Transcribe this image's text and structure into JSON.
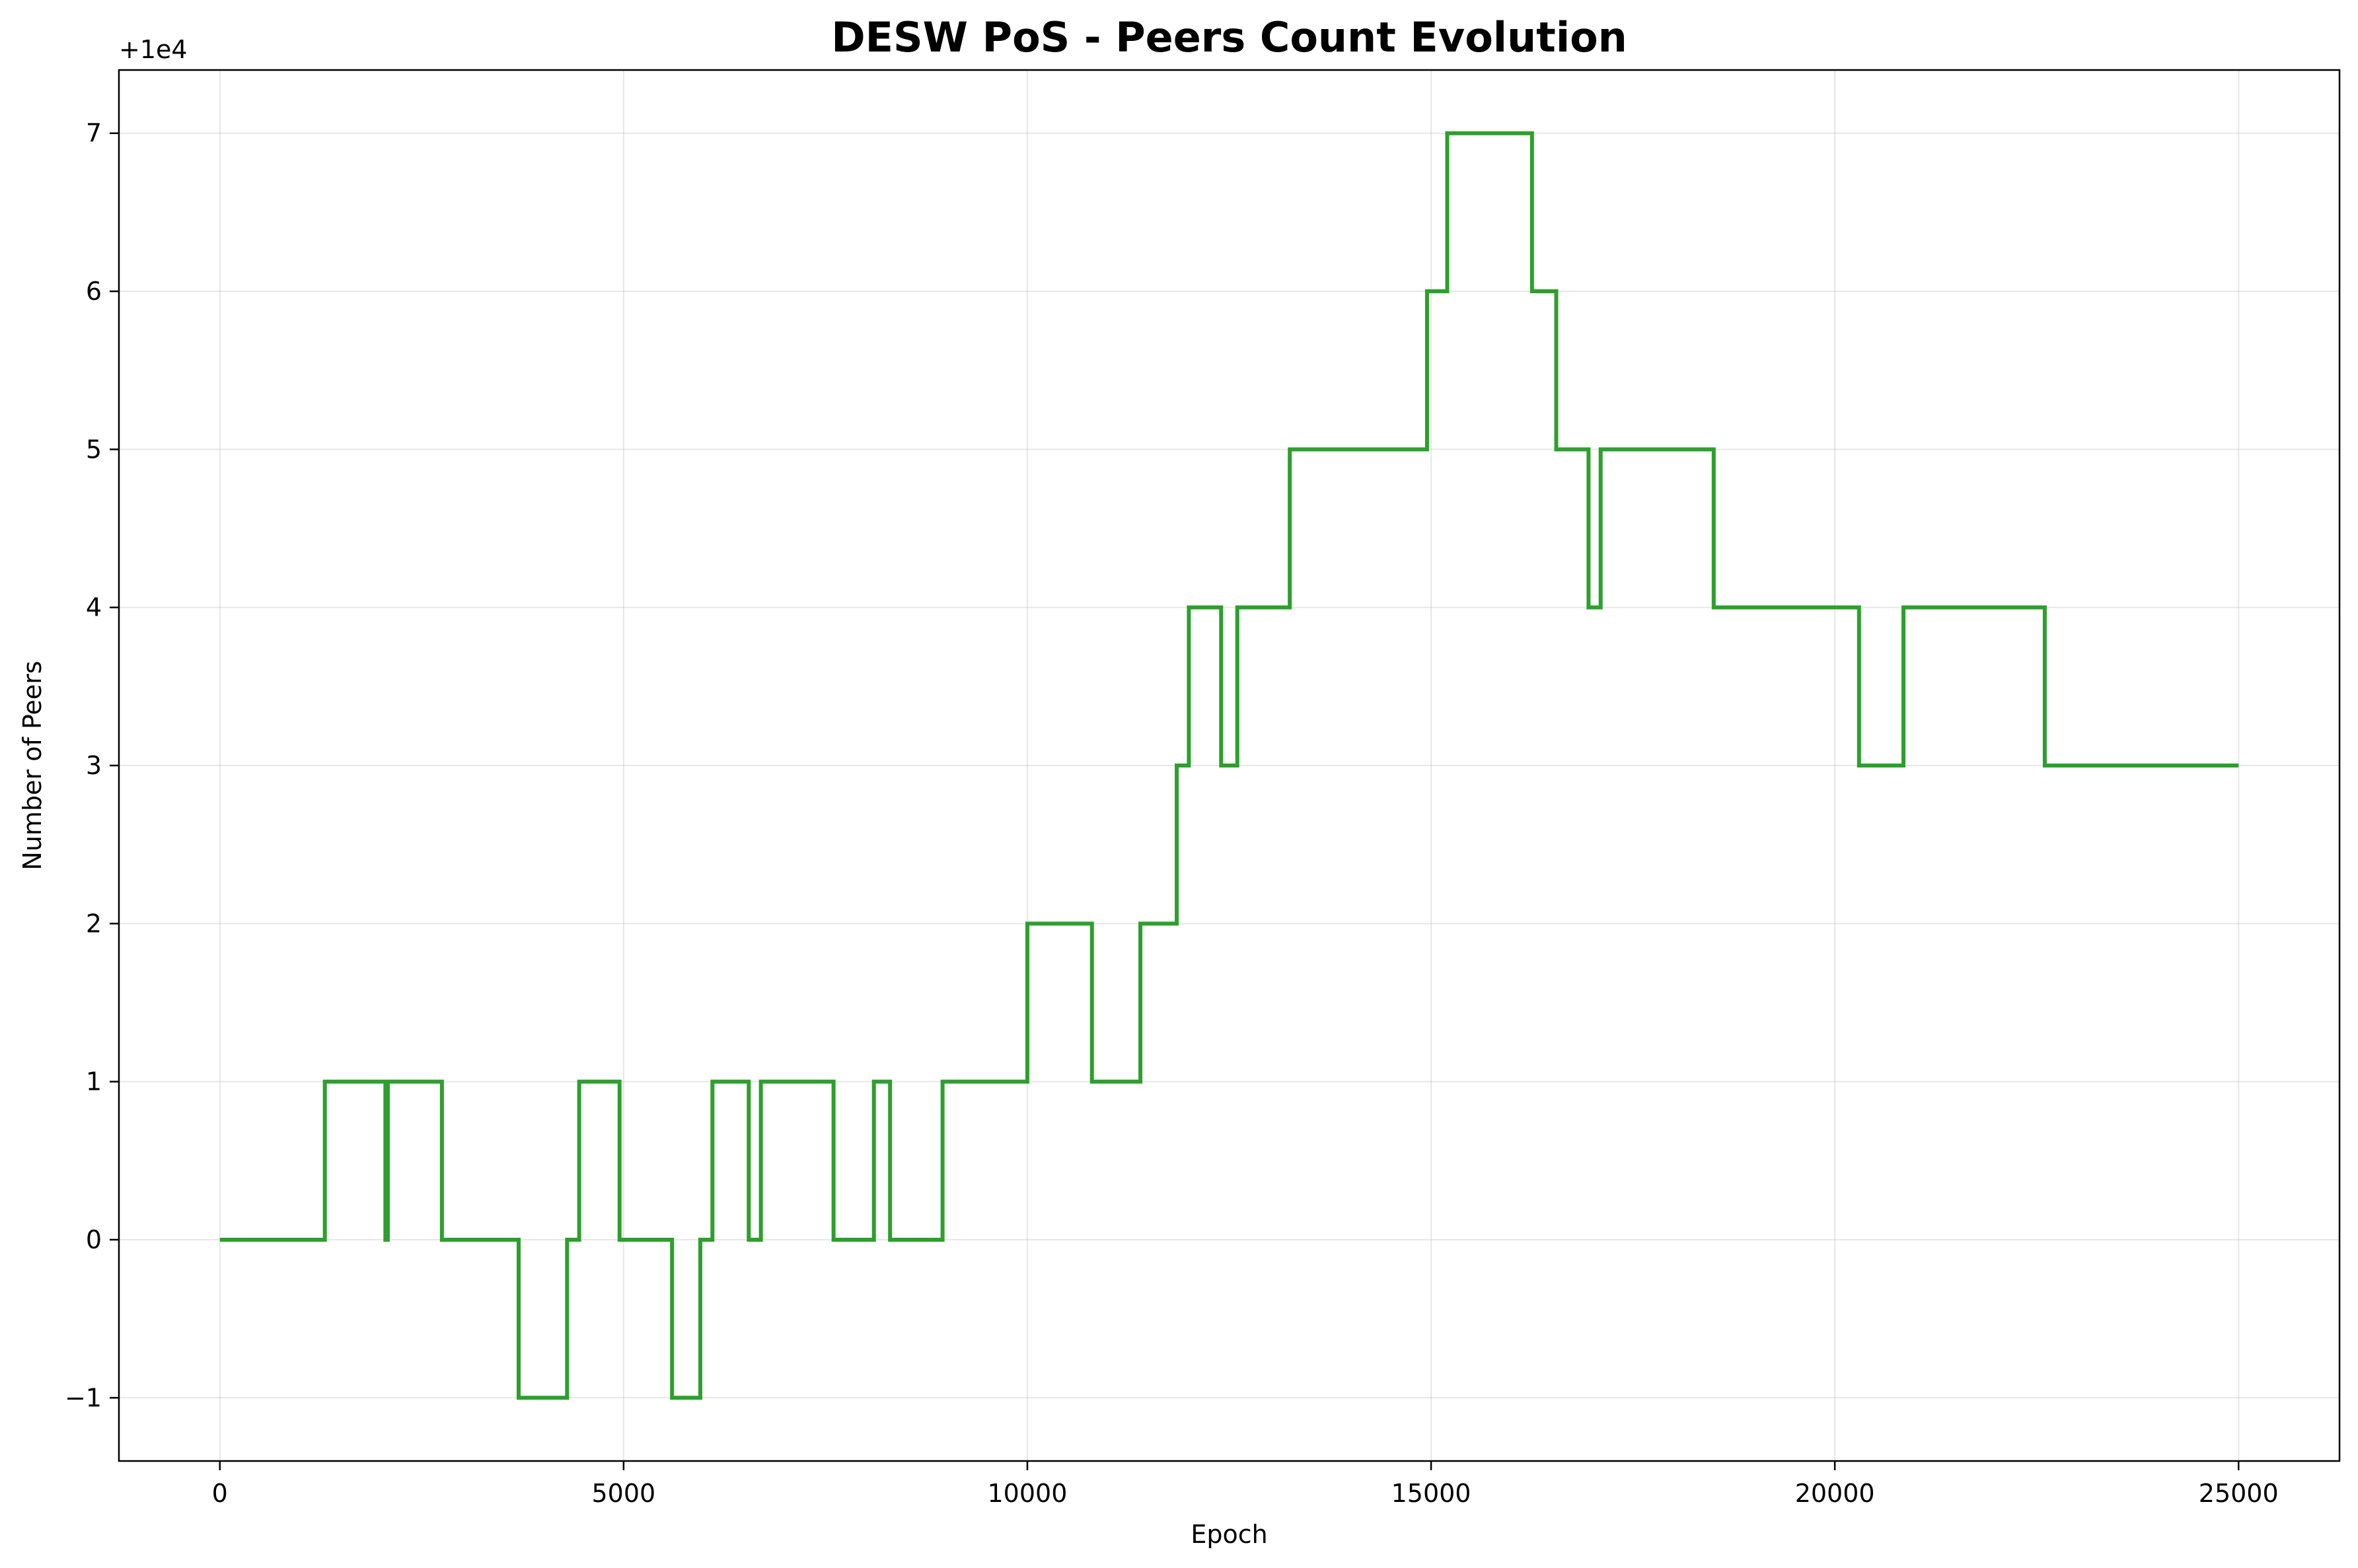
{
  "chart_data": {
    "type": "line",
    "title": "DESW PoS - Peers Count Evolution",
    "xlabel": "Epoch",
    "ylabel": "Number of Peers",
    "y_offset_label": "+1e4",
    "y_offset": 10000,
    "xlim": [
      -1250,
      26250
    ],
    "ylim": [
      9998.6,
      10007.4
    ],
    "xticks": [
      0,
      5000,
      10000,
      15000,
      20000,
      25000
    ],
    "yticks": [
      -1,
      0,
      1,
      2,
      3,
      4,
      5,
      6,
      7
    ],
    "ytick_labels": [
      "−1",
      "0",
      "1",
      "2",
      "3",
      "4",
      "5",
      "6",
      "7"
    ],
    "grid": true,
    "color": "#2ca02c",
    "step": true,
    "series": [
      {
        "x": [
          0,
          1300,
          2050,
          2080,
          2750,
          3700,
          4300,
          4450,
          4950,
          5600,
          5950,
          6100,
          6550,
          6700,
          7600,
          8100,
          8300,
          8950,
          10000,
          10800,
          11400,
          11850,
          12000,
          12400,
          12600,
          13250,
          14950,
          15200,
          16250,
          16550,
          16950,
          17100,
          18500,
          20300,
          20850,
          22600,
          25000
        ],
        "y": [
          10000,
          10001,
          10000,
          10001,
          10000,
          9999,
          10000,
          10001,
          10000,
          9999,
          10000,
          10001,
          10000,
          10001,
          10000,
          10001,
          10000,
          10001,
          10002,
          10001,
          10002,
          10003,
          10004,
          10003,
          10004,
          10005,
          10006,
          10007,
          10006,
          10005,
          10004,
          10005,
          10004,
          10003,
          10004,
          10003,
          10003
        ]
      }
    ]
  }
}
